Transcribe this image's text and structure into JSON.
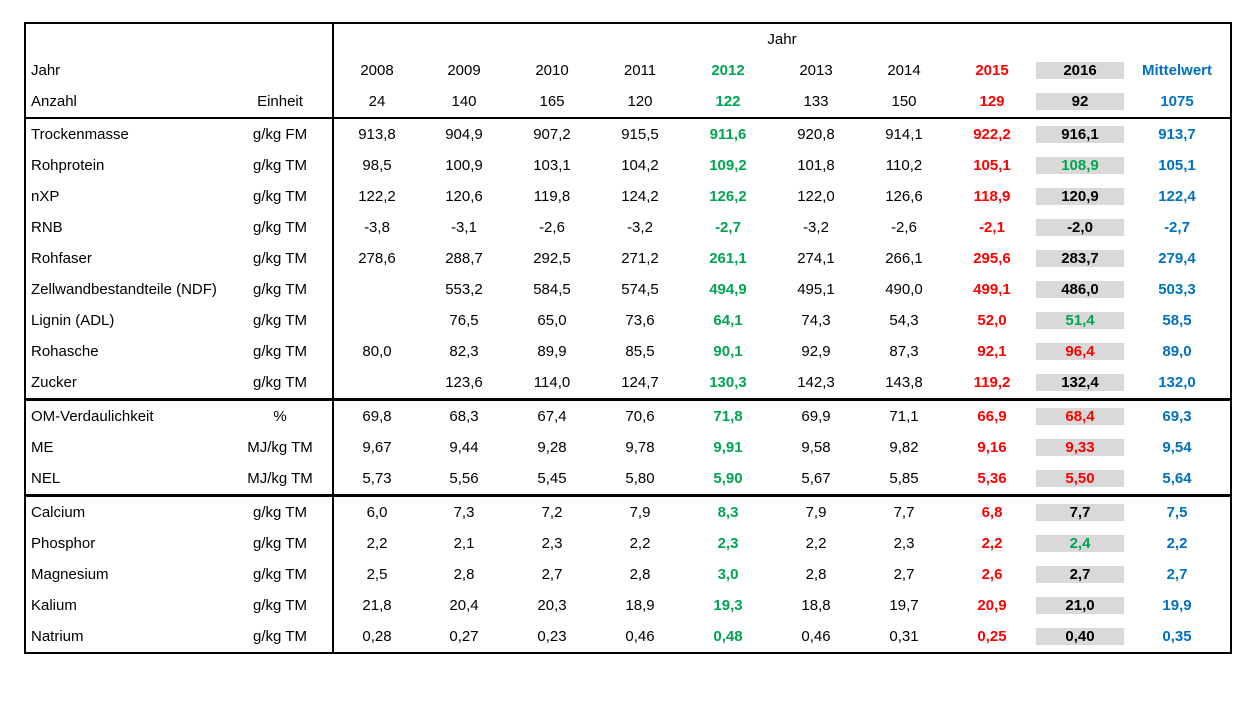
{
  "colors": {
    "green": "#00A551",
    "red": "#FF0000",
    "blue": "#0070C0",
    "text": "#000000",
    "border": "#000000",
    "highlight_column_bg": "#D9D9D9",
    "page_bg": "#FFFFFF"
  },
  "header": {
    "year_group_label": "Jahr",
    "year_row_label": "Jahr",
    "count_row_label": "Anzahl",
    "unit_column_label": "Einheit",
    "columns": [
      {
        "label": "2008",
        "style": "n"
      },
      {
        "label": "2009",
        "style": "n"
      },
      {
        "label": "2010",
        "style": "n"
      },
      {
        "label": "2011",
        "style": "n"
      },
      {
        "label": "2012",
        "style": "g"
      },
      {
        "label": "2013",
        "style": "n"
      },
      {
        "label": "2014",
        "style": "n"
      },
      {
        "label": "2015",
        "style": "r"
      },
      {
        "label": "2016",
        "style": "k"
      },
      {
        "label": "Mittelwert",
        "style": "b"
      }
    ],
    "counts": {
      "values": [
        "24",
        "140",
        "165",
        "120",
        "122",
        "133",
        "150",
        "129",
        "92",
        "1075"
      ],
      "styles": [
        "n",
        "n",
        "n",
        "n",
        "g",
        "n",
        "n",
        "r",
        "k",
        "b"
      ]
    },
    "highlight_column_index": 8
  },
  "blocks": [
    {
      "rows": [
        {
          "label": "Trockenmasse",
          "unit": "g/kg FM",
          "values": [
            "913,8",
            "904,9",
            "907,2",
            "915,5",
            "911,6",
            "920,8",
            "914,1",
            "922,2",
            "916,1",
            "913,7"
          ],
          "styles": [
            "n",
            "n",
            "n",
            "n",
            "g",
            "n",
            "n",
            "r",
            "k",
            "b"
          ]
        },
        {
          "label": "Rohprotein",
          "unit": "g/kg TM",
          "values": [
            "98,5",
            "100,9",
            "103,1",
            "104,2",
            "109,2",
            "101,8",
            "110,2",
            "105,1",
            "108,9",
            "105,1"
          ],
          "styles": [
            "n",
            "n",
            "n",
            "n",
            "g",
            "n",
            "n",
            "r",
            "g",
            "b"
          ]
        },
        {
          "label": "nXP",
          "unit": "g/kg TM",
          "values": [
            "122,2",
            "120,6",
            "119,8",
            "124,2",
            "126,2",
            "122,0",
            "126,6",
            "118,9",
            "120,9",
            "122,4"
          ],
          "styles": [
            "n",
            "n",
            "n",
            "n",
            "g",
            "n",
            "n",
            "r",
            "k",
            "b"
          ]
        },
        {
          "label": "RNB",
          "unit": "g/kg TM",
          "values": [
            "-3,8",
            "-3,1",
            "-2,6",
            "-3,2",
            "-2,7",
            "-3,2",
            "-2,6",
            "-2,1",
            "-2,0",
            "-2,7"
          ],
          "styles": [
            "n",
            "n",
            "n",
            "n",
            "g",
            "n",
            "n",
            "r",
            "k",
            "b"
          ]
        },
        {
          "label": "Rohfaser",
          "unit": "g/kg TM",
          "values": [
            "278,6",
            "288,7",
            "292,5",
            "271,2",
            "261,1",
            "274,1",
            "266,1",
            "295,6",
            "283,7",
            "279,4"
          ],
          "styles": [
            "n",
            "n",
            "n",
            "n",
            "g",
            "n",
            "n",
            "r",
            "k",
            "b"
          ]
        },
        {
          "label": "Zellwandbestandteile (NDF)",
          "unit": "g/kg TM",
          "values": [
            "",
            "553,2",
            "584,5",
            "574,5",
            "494,9",
            "495,1",
            "490,0",
            "499,1",
            "486,0",
            "503,3"
          ],
          "styles": [
            "n",
            "n",
            "n",
            "n",
            "g",
            "n",
            "n",
            "r",
            "k",
            "b"
          ]
        },
        {
          "label": "Lignin (ADL)",
          "unit": "g/kg TM",
          "values": [
            "",
            "76,5",
            "65,0",
            "73,6",
            "64,1",
            "74,3",
            "54,3",
            "52,0",
            "51,4",
            "58,5"
          ],
          "styles": [
            "n",
            "n",
            "n",
            "n",
            "g",
            "n",
            "n",
            "r",
            "g",
            "b"
          ]
        },
        {
          "label": "Rohasche",
          "unit": "g/kg TM",
          "values": [
            "80,0",
            "82,3",
            "89,9",
            "85,5",
            "90,1",
            "92,9",
            "87,3",
            "92,1",
            "96,4",
            "89,0"
          ],
          "styles": [
            "n",
            "n",
            "n",
            "n",
            "g",
            "n",
            "n",
            "r",
            "r",
            "b"
          ]
        },
        {
          "label": "Zucker",
          "unit": "g/kg TM",
          "values": [
            "",
            "123,6",
            "114,0",
            "124,7",
            "130,3",
            "142,3",
            "143,8",
            "119,2",
            "132,4",
            "132,0"
          ],
          "styles": [
            "n",
            "n",
            "n",
            "n",
            "g",
            "n",
            "n",
            "r",
            "k",
            "b"
          ]
        }
      ]
    },
    {
      "rows": [
        {
          "label": "OM-Verdaulichkeit",
          "unit": "%",
          "values": [
            "69,8",
            "68,3",
            "67,4",
            "70,6",
            "71,8",
            "69,9",
            "71,1",
            "66,9",
            "68,4",
            "69,3"
          ],
          "styles": [
            "n",
            "n",
            "n",
            "n",
            "g",
            "n",
            "n",
            "r",
            "r",
            "b"
          ]
        },
        {
          "label": "ME",
          "unit": "MJ/kg TM",
          "values": [
            "9,67",
            "9,44",
            "9,28",
            "9,78",
            "9,91",
            "9,58",
            "9,82",
            "9,16",
            "9,33",
            "9,54"
          ],
          "styles": [
            "n",
            "n",
            "n",
            "n",
            "g",
            "n",
            "n",
            "r",
            "r",
            "b"
          ]
        },
        {
          "label": "NEL",
          "unit": "MJ/kg TM",
          "values": [
            "5,73",
            "5,56",
            "5,45",
            "5,80",
            "5,90",
            "5,67",
            "5,85",
            "5,36",
            "5,50",
            "5,64"
          ],
          "styles": [
            "n",
            "n",
            "n",
            "n",
            "g",
            "n",
            "n",
            "r",
            "r",
            "b"
          ]
        }
      ]
    },
    {
      "rows": [
        {
          "label": "Calcium",
          "unit": "g/kg TM",
          "values": [
            "6,0",
            "7,3",
            "7,2",
            "7,9",
            "8,3",
            "7,9",
            "7,7",
            "6,8",
            "7,7",
            "7,5"
          ],
          "styles": [
            "n",
            "n",
            "n",
            "n",
            "g",
            "n",
            "n",
            "r",
            "k",
            "b"
          ]
        },
        {
          "label": "Phosphor",
          "unit": "g/kg TM",
          "values": [
            "2,2",
            "2,1",
            "2,3",
            "2,2",
            "2,3",
            "2,2",
            "2,3",
            "2,2",
            "2,4",
            "2,2"
          ],
          "styles": [
            "n",
            "n",
            "n",
            "n",
            "g",
            "n",
            "n",
            "r",
            "g",
            "b"
          ]
        },
        {
          "label": "Magnesium",
          "unit": "g/kg TM",
          "values": [
            "2,5",
            "2,8",
            "2,7",
            "2,8",
            "3,0",
            "2,8",
            "2,7",
            "2,6",
            "2,7",
            "2,7"
          ],
          "styles": [
            "n",
            "n",
            "n",
            "n",
            "g",
            "n",
            "n",
            "r",
            "k",
            "b"
          ]
        },
        {
          "label": "Kalium",
          "unit": "g/kg TM",
          "values": [
            "21,8",
            "20,4",
            "20,3",
            "18,9",
            "19,3",
            "18,8",
            "19,7",
            "20,9",
            "21,0",
            "19,9"
          ],
          "styles": [
            "n",
            "n",
            "n",
            "n",
            "g",
            "n",
            "n",
            "r",
            "k",
            "b"
          ]
        },
        {
          "label": "Natrium",
          "unit": "g/kg TM",
          "values": [
            "0,28",
            "0,27",
            "0,23",
            "0,46",
            "0,48",
            "0,46",
            "0,31",
            "0,25",
            "0,40",
            "0,35"
          ],
          "styles": [
            "n",
            "n",
            "n",
            "n",
            "g",
            "n",
            "n",
            "r",
            "k",
            "b"
          ]
        }
      ]
    }
  ]
}
